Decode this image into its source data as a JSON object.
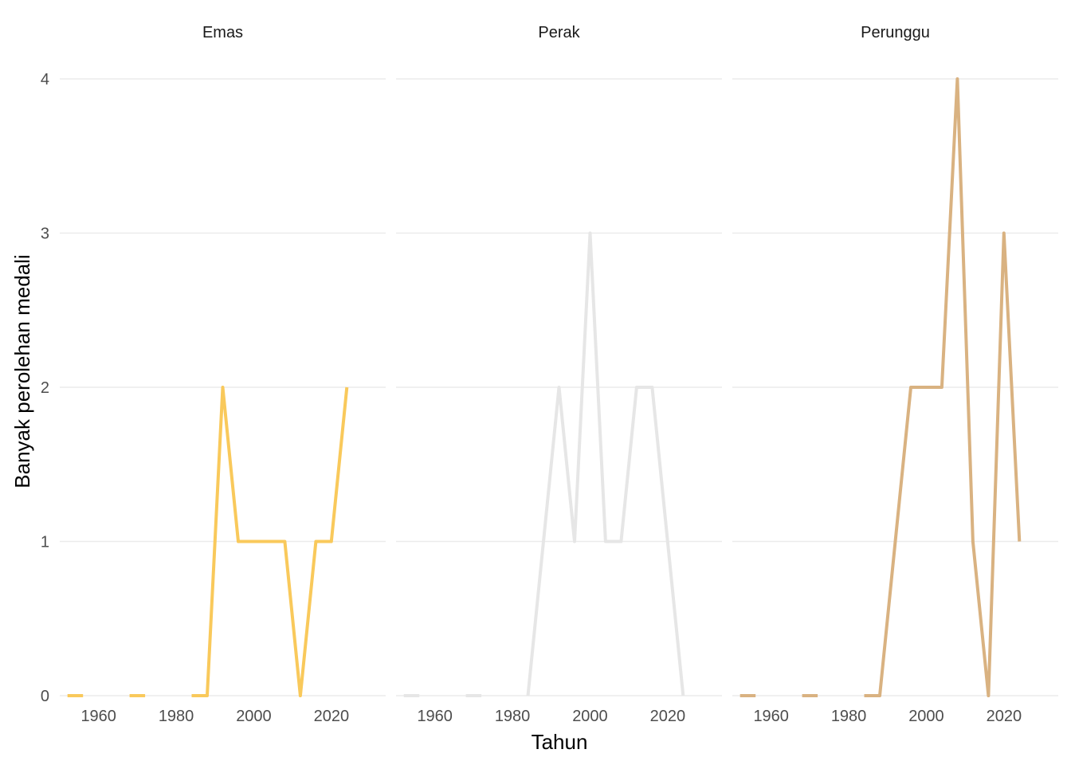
{
  "chart_data": {
    "type": "line",
    "facets": [
      "Emas",
      "Perak",
      "Perunggu"
    ],
    "xlabel": "Tahun",
    "ylabel": "Banyak perolehan medali",
    "x_ticks": [
      "1960",
      "1980",
      "2000",
      "2020"
    ],
    "y_ticks": [
      "0",
      "1",
      "2",
      "3",
      "4"
    ],
    "xlim": [
      1950,
      2034
    ],
    "ylim": [
      0,
      4
    ],
    "grid": "horizontal major",
    "legend": "none",
    "x": [
      1952,
      1956,
      1960,
      1964,
      1968,
      1972,
      1976,
      1980,
      1984,
      1988,
      1992,
      1996,
      2000,
      2004,
      2008,
      2012,
      2016,
      2020,
      2024
    ],
    "series": [
      {
        "facet": "Emas",
        "color": "#F9C95B",
        "values": [
          0,
          0,
          null,
          null,
          0,
          0,
          null,
          null,
          0,
          0,
          2,
          1,
          1,
          1,
          1,
          0,
          1,
          1,
          2
        ]
      },
      {
        "facet": "Perak",
        "color": "#E6E6E6",
        "values": [
          0,
          0,
          null,
          null,
          0,
          0,
          null,
          null,
          0,
          1,
          2,
          1,
          3,
          1,
          1,
          2,
          2,
          1,
          0
        ]
      },
      {
        "facet": "Perunggu",
        "color": "#D9B281",
        "values": [
          0,
          0,
          null,
          null,
          0,
          0,
          null,
          null,
          0,
          0,
          1,
          2,
          2,
          2,
          4,
          1,
          0,
          3,
          1
        ]
      }
    ]
  }
}
